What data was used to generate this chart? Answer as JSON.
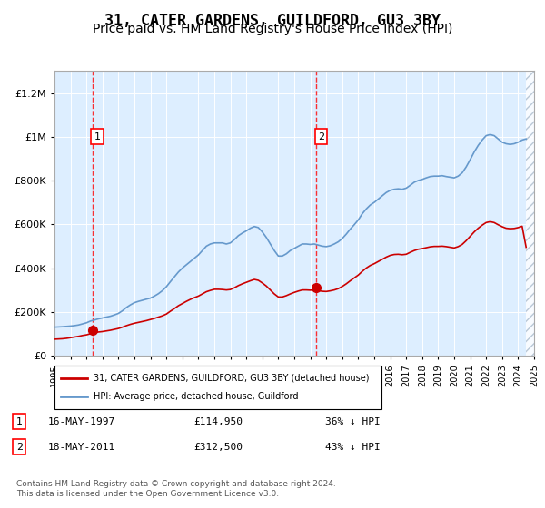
{
  "title": "31, CATER GARDENS, GUILDFORD, GU3 3BY",
  "subtitle": "Price paid vs. HM Land Registry's House Price Index (HPI)",
  "hpi_years": [
    1995.0,
    1995.25,
    1995.5,
    1995.75,
    1996.0,
    1996.25,
    1996.5,
    1996.75,
    1997.0,
    1997.25,
    1997.5,
    1997.75,
    1998.0,
    1998.25,
    1998.5,
    1998.75,
    1999.0,
    1999.25,
    1999.5,
    1999.75,
    2000.0,
    2000.25,
    2000.5,
    2000.75,
    2001.0,
    2001.25,
    2001.5,
    2001.75,
    2002.0,
    2002.25,
    2002.5,
    2002.75,
    2003.0,
    2003.25,
    2003.5,
    2003.75,
    2004.0,
    2004.25,
    2004.5,
    2004.75,
    2005.0,
    2005.25,
    2005.5,
    2005.75,
    2006.0,
    2006.25,
    2006.5,
    2006.75,
    2007.0,
    2007.25,
    2007.5,
    2007.75,
    2008.0,
    2008.25,
    2008.5,
    2008.75,
    2009.0,
    2009.25,
    2009.5,
    2009.75,
    2010.0,
    2010.25,
    2010.5,
    2010.75,
    2011.0,
    2011.25,
    2011.5,
    2011.75,
    2012.0,
    2012.25,
    2012.5,
    2012.75,
    2013.0,
    2013.25,
    2013.5,
    2013.75,
    2014.0,
    2014.25,
    2014.5,
    2014.75,
    2015.0,
    2015.25,
    2015.5,
    2015.75,
    2016.0,
    2016.25,
    2016.5,
    2016.75,
    2017.0,
    2017.25,
    2017.5,
    2017.75,
    2018.0,
    2018.25,
    2018.5,
    2018.75,
    2019.0,
    2019.25,
    2019.5,
    2019.75,
    2020.0,
    2020.25,
    2020.5,
    2020.75,
    2021.0,
    2021.25,
    2021.5,
    2021.75,
    2022.0,
    2022.25,
    2022.5,
    2022.75,
    2023.0,
    2023.25,
    2023.5,
    2023.75,
    2024.0,
    2024.25,
    2024.5
  ],
  "hpi_values": [
    130000,
    131000,
    132000,
    133500,
    135000,
    137000,
    140000,
    145000,
    150000,
    158000,
    163000,
    168000,
    172000,
    176000,
    180000,
    186000,
    193000,
    205000,
    220000,
    232000,
    242000,
    248000,
    253000,
    258000,
    263000,
    272000,
    283000,
    297000,
    315000,
    338000,
    360000,
    382000,
    400000,
    415000,
    430000,
    445000,
    460000,
    480000,
    500000,
    510000,
    515000,
    515000,
    515000,
    510000,
    515000,
    530000,
    548000,
    560000,
    570000,
    582000,
    590000,
    585000,
    565000,
    540000,
    510000,
    480000,
    455000,
    455000,
    465000,
    480000,
    490000,
    500000,
    510000,
    510000,
    508000,
    510000,
    505000,
    500000,
    498000,
    502000,
    510000,
    520000,
    535000,
    555000,
    578000,
    598000,
    620000,
    648000,
    670000,
    688000,
    700000,
    715000,
    730000,
    745000,
    755000,
    760000,
    762000,
    760000,
    765000,
    778000,
    792000,
    800000,
    805000,
    812000,
    818000,
    820000,
    820000,
    822000,
    818000,
    815000,
    812000,
    820000,
    835000,
    862000,
    895000,
    930000,
    960000,
    985000,
    1005000,
    1010000,
    1005000,
    990000,
    975000,
    968000,
    965000,
    968000,
    975000,
    985000,
    990000
  ],
  "price_years": [
    1995.0,
    1995.25,
    1995.5,
    1995.75,
    1996.0,
    1996.25,
    1996.5,
    1996.75,
    1997.0,
    1997.25,
    1997.5,
    1997.75,
    1998.0,
    1998.25,
    1998.5,
    1998.75,
    1999.0,
    1999.25,
    1999.5,
    1999.75,
    2000.0,
    2000.25,
    2000.5,
    2000.75,
    2001.0,
    2001.25,
    2001.5,
    2001.75,
    2002.0,
    2002.25,
    2002.5,
    2002.75,
    2003.0,
    2003.25,
    2003.5,
    2003.75,
    2004.0,
    2004.25,
    2004.5,
    2004.75,
    2005.0,
    2005.25,
    2005.5,
    2005.75,
    2006.0,
    2006.25,
    2006.5,
    2006.75,
    2007.0,
    2007.25,
    2007.5,
    2007.75,
    2008.0,
    2008.25,
    2008.5,
    2008.75,
    2009.0,
    2009.25,
    2009.5,
    2009.75,
    2010.0,
    2010.25,
    2010.5,
    2010.75,
    2011.0,
    2011.25,
    2011.5,
    2011.75,
    2012.0,
    2012.25,
    2012.5,
    2012.75,
    2013.0,
    2013.25,
    2013.5,
    2013.75,
    2014.0,
    2014.25,
    2014.5,
    2014.75,
    2015.0,
    2015.25,
    2015.5,
    2015.75,
    2016.0,
    2016.25,
    2016.5,
    2016.75,
    2017.0,
    2017.25,
    2017.5,
    2017.75,
    2018.0,
    2018.25,
    2018.5,
    2018.75,
    2019.0,
    2019.25,
    2019.5,
    2019.75,
    2020.0,
    2020.25,
    2020.5,
    2020.75,
    2021.0,
    2021.25,
    2021.5,
    2021.75,
    2022.0,
    2022.25,
    2022.5,
    2022.75,
    2023.0,
    2023.25,
    2023.5,
    2023.75,
    2024.0,
    2024.25,
    2024.5
  ],
  "price_values": [
    75000,
    76000,
    77000,
    79000,
    82000,
    85000,
    88000,
    92000,
    95000,
    100000,
    105000,
    108000,
    110000,
    113000,
    116000,
    120000,
    124000,
    130000,
    137000,
    143000,
    148000,
    152000,
    156000,
    160000,
    165000,
    170000,
    176000,
    182000,
    190000,
    203000,
    215000,
    228000,
    238000,
    248000,
    257000,
    265000,
    272000,
    282000,
    292000,
    298000,
    303000,
    303000,
    302000,
    300000,
    302000,
    310000,
    320000,
    328000,
    335000,
    342000,
    348000,
    344000,
    332000,
    318000,
    300000,
    282000,
    268000,
    268000,
    274000,
    282000,
    289000,
    295000,
    300000,
    300000,
    299000,
    300000,
    297000,
    294000,
    293000,
    296000,
    300000,
    306000,
    316000,
    328000,
    342000,
    355000,
    368000,
    385000,
    400000,
    412000,
    420000,
    430000,
    440000,
    450000,
    458000,
    462000,
    463000,
    461000,
    463000,
    472000,
    480000,
    486000,
    489000,
    493000,
    497000,
    499000,
    499000,
    500000,
    498000,
    495000,
    492000,
    498000,
    508000,
    525000,
    545000,
    565000,
    582000,
    596000,
    608000,
    612000,
    608000,
    598000,
    589000,
    582000,
    580000,
    581000,
    585000,
    591000,
    495000
  ],
  "sale1_year": 1997.37,
  "sale1_price": 114950,
  "sale1_label": "1",
  "sale2_year": 2011.37,
  "sale2_price": 312500,
  "sale2_label": "2",
  "xlim": [
    1995,
    2025
  ],
  "ylim": [
    0,
    1300000
  ],
  "yticks": [
    0,
    200000,
    400000,
    600000,
    800000,
    1000000,
    1200000
  ],
  "ytick_labels": [
    "£0",
    "£200K",
    "£400K",
    "£600K",
    "£800K",
    "£1M",
    "£1.2M"
  ],
  "xticks": [
    1995,
    1996,
    1997,
    1998,
    1999,
    2000,
    2001,
    2002,
    2003,
    2004,
    2005,
    2006,
    2007,
    2008,
    2009,
    2010,
    2011,
    2012,
    2013,
    2014,
    2015,
    2016,
    2017,
    2018,
    2019,
    2020,
    2021,
    2022,
    2023,
    2024,
    2025
  ],
  "hpi_color": "#6699cc",
  "price_color": "#cc0000",
  "bg_color": "#ddeeff",
  "hatch_color": "#aabbcc",
  "legend_label_price": "31, CATER GARDENS, GUILDFORD, GU3 3BY (detached house)",
  "legend_label_hpi": "HPI: Average price, detached house, Guildford",
  "sale_info": [
    {
      "num": "1",
      "date": "16-MAY-1997",
      "price": "£114,950",
      "pct": "36% ↓ HPI"
    },
    {
      "num": "2",
      "date": "18-MAY-2011",
      "price": "£312,500",
      "pct": "43% ↓ HPI"
    }
  ],
  "footnote": "Contains HM Land Registry data © Crown copyright and database right 2024.\nThis data is licensed under the Open Government Licence v3.0.",
  "title_fontsize": 12,
  "subtitle_fontsize": 10
}
